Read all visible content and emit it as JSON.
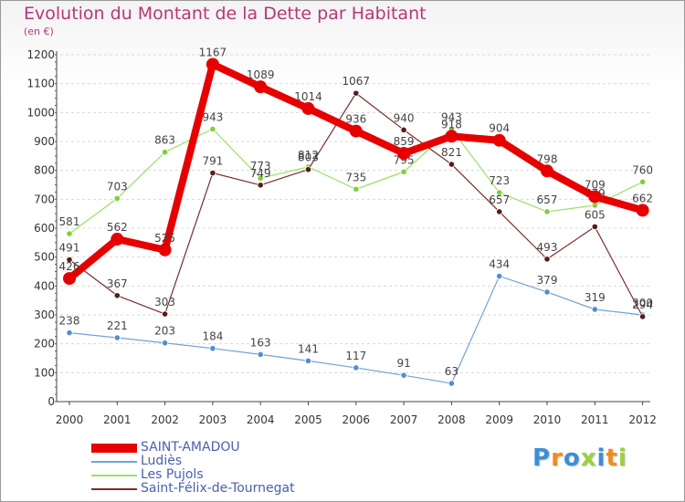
{
  "chart_data": {
    "type": "line",
    "title": "Evolution du Montant de la Dette par Habitant",
    "ylabel": "(en €)",
    "xlabel": "",
    "ylim": [
      0,
      1200
    ],
    "yticks": [
      0,
      100,
      200,
      300,
      400,
      500,
      600,
      700,
      800,
      900,
      1000,
      1100,
      1200
    ],
    "categories": [
      "2000",
      "2001",
      "2002",
      "2003",
      "2004",
      "2005",
      "2006",
      "2007",
      "2008",
      "2009",
      "2010",
      "2011",
      "2012"
    ],
    "series": [
      {
        "name": "SAINT-AMADOU",
        "color": "#e60000",
        "values": [
          426,
          562,
          525,
          1167,
          1089,
          1014,
          936,
          859,
          918,
          904,
          798,
          709,
          662
        ]
      },
      {
        "name": "Ludiès",
        "color": "#6fa4d4",
        "values": [
          238,
          221,
          203,
          184,
          163,
          141,
          117,
          91,
          63,
          434,
          379,
          319,
          300
        ]
      },
      {
        "name": "Les Pujols",
        "color": "#99e066",
        "values": [
          581,
          703,
          863,
          943,
          773,
          812,
          735,
          795,
          943,
          723,
          657,
          679,
          760
        ]
      },
      {
        "name": "Saint-Félix-de-Tournegat",
        "color": "#7b2c2c",
        "values": [
          491,
          367,
          303,
          791,
          749,
          803,
          1067,
          940,
          821,
          657,
          493,
          605,
          294
        ]
      }
    ]
  },
  "logo": {
    "text": "Proxiti"
  }
}
